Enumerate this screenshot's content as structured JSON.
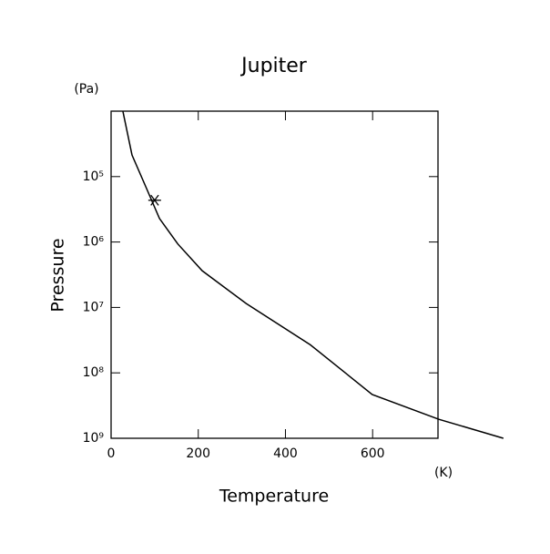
{
  "chart_data": {
    "type": "line",
    "title": "Jupiter",
    "x_label": "Temperature",
    "x_unit": "(K)",
    "y_label": "Pressure",
    "y_unit": "(Pa)",
    "x": [
      27,
      48,
      80,
      111,
      153,
      209,
      310,
      457,
      599,
      752,
      900
    ],
    "series": [
      {
        "color": "#000000",
        "values": [
          10000,
          46800,
          145000,
          437000,
          1070000,
          2750000,
          8710000,
          37200000,
          214000000,
          513000000,
          1000000000
        ]
      }
    ],
    "marker": {
      "x": 100,
      "y": 230000
    },
    "xlim": [
      0,
      750
    ],
    "xticks": [
      0,
      200,
      400,
      600
    ],
    "ylim": [
      10000,
      1000000000
    ],
    "y_log": true,
    "y_inverted": true,
    "yticks": [
      {
        "value": 100000,
        "label": "10⁵"
      },
      {
        "value": 1000000,
        "label": "10⁶"
      },
      {
        "value": 10000000,
        "label": "10⁷"
      },
      {
        "value": 100000000,
        "label": "10⁸"
      },
      {
        "value": 1000000000,
        "label": "10⁹"
      }
    ],
    "grid": false
  }
}
